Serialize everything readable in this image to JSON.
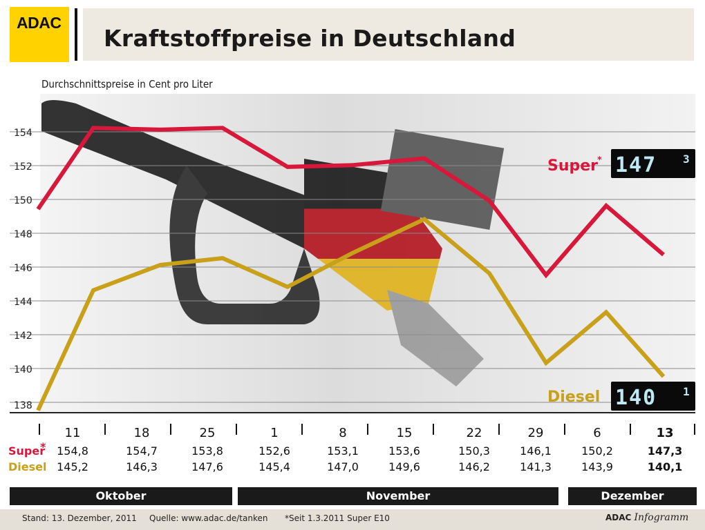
{
  "header": {
    "logo": "ADAC",
    "title": "Kraftstoffpreise in Deutschland",
    "subtitle": "Durchschnittspreise in Cent pro Liter"
  },
  "chart_data": {
    "type": "line",
    "ylim": [
      138,
      156
    ],
    "yticks": [
      "154",
      "152",
      "150",
      "148",
      "146",
      "144",
      "142",
      "140",
      "138"
    ],
    "ytick_values": [
      154,
      152,
      150,
      148,
      146,
      144,
      142,
      140,
      138
    ],
    "grid": true,
    "categories": [
      "11",
      "18",
      "25",
      "1",
      "8",
      "15",
      "22",
      "29",
      "6",
      "13"
    ],
    "series": [
      {
        "name": "Super",
        "marker": "*",
        "color": "#d7183a",
        "values": [
          154.8,
          154.7,
          153.8,
          152.6,
          153.1,
          153.6,
          150.3,
          146.1,
          150.2,
          147.3
        ],
        "plot_values": [
          150.0,
          154.8,
          154.7,
          154.8,
          152.5,
          152.6,
          153.0,
          150.5,
          146.1,
          150.2,
          147.3
        ],
        "labels": [
          "154,8",
          "154,7",
          "153,8",
          "152,6",
          "153,1",
          "153,6",
          "150,3",
          "146,1",
          "150,2",
          "147,3"
        ],
        "lcd": "147",
        "lcd_sup": "3"
      },
      {
        "name": "Diesel",
        "color": "#c8a019",
        "values": [
          145.2,
          146.3,
          147.6,
          145.4,
          147.0,
          149.6,
          146.2,
          141.3,
          143.9,
          140.1
        ],
        "plot_values": [
          138.1,
          145.2,
          146.7,
          147.1,
          145.4,
          147.4,
          149.4,
          146.2,
          140.9,
          143.9,
          140.1
        ],
        "labels": [
          "145,2",
          "146,3",
          "147,6",
          "145,4",
          "147,0",
          "149,6",
          "146,2",
          "141,3",
          "143,9",
          "140,1"
        ],
        "lcd": "140",
        "lcd_sup": "1"
      }
    ],
    "months": [
      "Oktober",
      "November",
      "Dezember"
    ]
  },
  "footer": {
    "stand": "Stand: 13. Dezember, 2011",
    "quelle": "Quelle: www.adac.de/tanken",
    "note": "*Seit 1.3.2011 Super E10",
    "brand_a": "ADAC ",
    "brand_b": "Infogramm"
  }
}
